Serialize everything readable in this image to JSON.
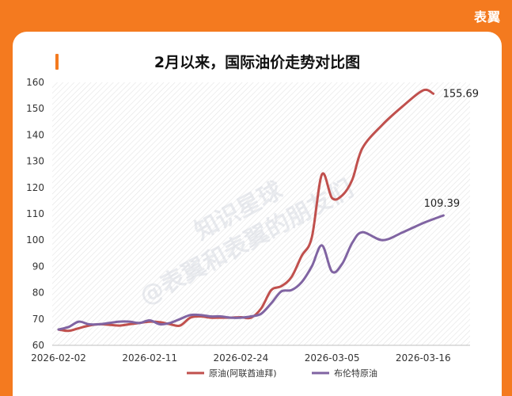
{
  "brand": {
    "logo_text": "表翼"
  },
  "chart_data": {
    "type": "line",
    "title": "2月以来，国际油价走势对比图",
    "xlabel": "",
    "ylabel": "",
    "ylim": [
      60,
      160
    ],
    "yticks": [
      60,
      70,
      80,
      90,
      100,
      110,
      120,
      130,
      140,
      150,
      160
    ],
    "x_tick_labels": [
      "2026-02-02",
      "2026-02-11",
      "2026-02-24",
      "2026-03-05",
      "2026-03-16"
    ],
    "x_tick_index": [
      0,
      9,
      18,
      27,
      36
    ],
    "n_points": 41,
    "grid": "diagonal-hatch",
    "legend_position": "bottom",
    "series": [
      {
        "name": "原油(阿联酋迪拜)",
        "color": "#c0504d",
        "values": [
          66,
          65.5,
          66.5,
          67.5,
          68,
          67.8,
          67.5,
          68,
          68.5,
          69,
          68.8,
          68,
          67.5,
          70.5,
          71,
          70.5,
          70.5,
          70.5,
          70.7,
          70.5,
          74,
          81,
          82.5,
          86,
          94,
          101,
          125,
          116,
          117,
          123,
          135,
          144,
          151,
          157,
          155.69
        ],
        "x_index": [
          0,
          1,
          2,
          3,
          4,
          5,
          6,
          7,
          8,
          9,
          10,
          11,
          12,
          13,
          14,
          15,
          16,
          17,
          18,
          19,
          20,
          21,
          22,
          23,
          24,
          25,
          26,
          27,
          28,
          29,
          30,
          32,
          34,
          36,
          37
        ],
        "end_label": "155.69"
      },
      {
        "name": "布伦特原油",
        "color": "#8064a2",
        "values": [
          66,
          67,
          69,
          68,
          68,
          68.5,
          69,
          69,
          68.5,
          69.5,
          68,
          68.5,
          70,
          71.5,
          71.5,
          71,
          71,
          70.5,
          70.5,
          71,
          72,
          76,
          80.5,
          81,
          84,
          90,
          98,
          88,
          91,
          99,
          103,
          100,
          103,
          106.5,
          109.39
        ],
        "x_index": [
          0,
          1,
          2,
          3,
          4,
          5,
          6,
          7,
          8,
          9,
          10,
          11,
          12,
          13,
          14,
          15,
          16,
          17,
          18,
          19,
          20,
          21,
          22,
          23,
          24,
          25,
          26,
          27,
          28,
          29,
          30,
          32,
          34,
          36,
          38
        ],
        "end_label": "109.39"
      }
    ]
  }
}
